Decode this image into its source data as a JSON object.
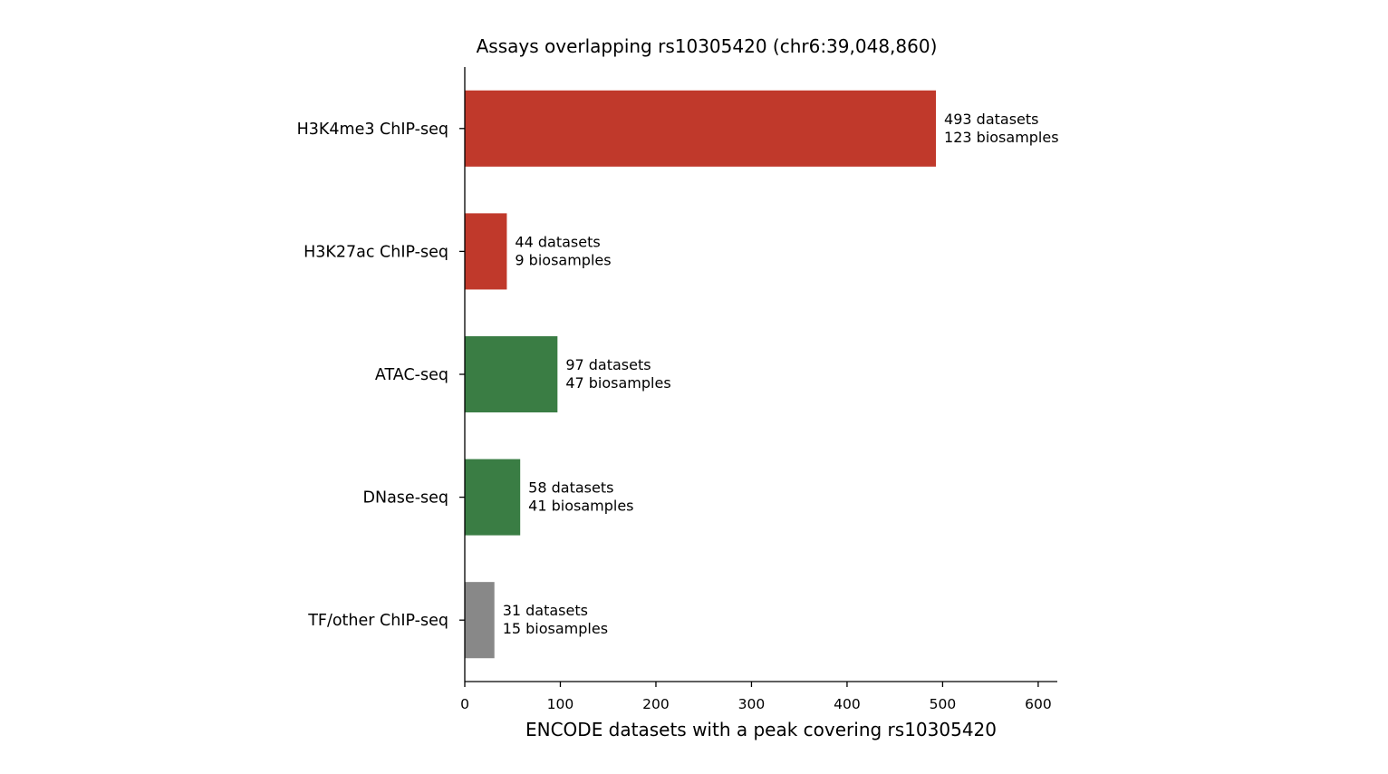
{
  "chart_data": {
    "type": "bar",
    "orientation": "horizontal",
    "title": "Assays overlapping rs10305420 (chr6:39,048,860)",
    "xlabel": "ENCODE datasets with a peak covering rs10305420",
    "ylabel": "",
    "xlim": [
      0,
      620
    ],
    "xticks": [
      0,
      100,
      200,
      300,
      400,
      500,
      600
    ],
    "xtick_labels": [
      "0",
      "100",
      "200",
      "300",
      "400",
      "500",
      "600"
    ],
    "grid": false,
    "categories": [
      "H3K4me3 ChIP-seq",
      "H3K27ac ChIP-seq",
      "ATAC-seq",
      "DNase-seq",
      "TF/other ChIP-seq"
    ],
    "values": [
      493,
      44,
      97,
      58,
      31
    ],
    "colors": [
      "#c0392b",
      "#c0392b",
      "#3a7d44",
      "#3a7d44",
      "#888888"
    ],
    "annotations": [
      {
        "datasets": "493 datasets",
        "biosamples": "123 biosamples"
      },
      {
        "datasets": "44 datasets",
        "biosamples": "9 biosamples"
      },
      {
        "datasets": "97 datasets",
        "biosamples": "47 biosamples"
      },
      {
        "datasets": "58 datasets",
        "biosamples": "41 biosamples"
      },
      {
        "datasets": "31 datasets",
        "biosamples": "15 biosamples"
      }
    ]
  }
}
